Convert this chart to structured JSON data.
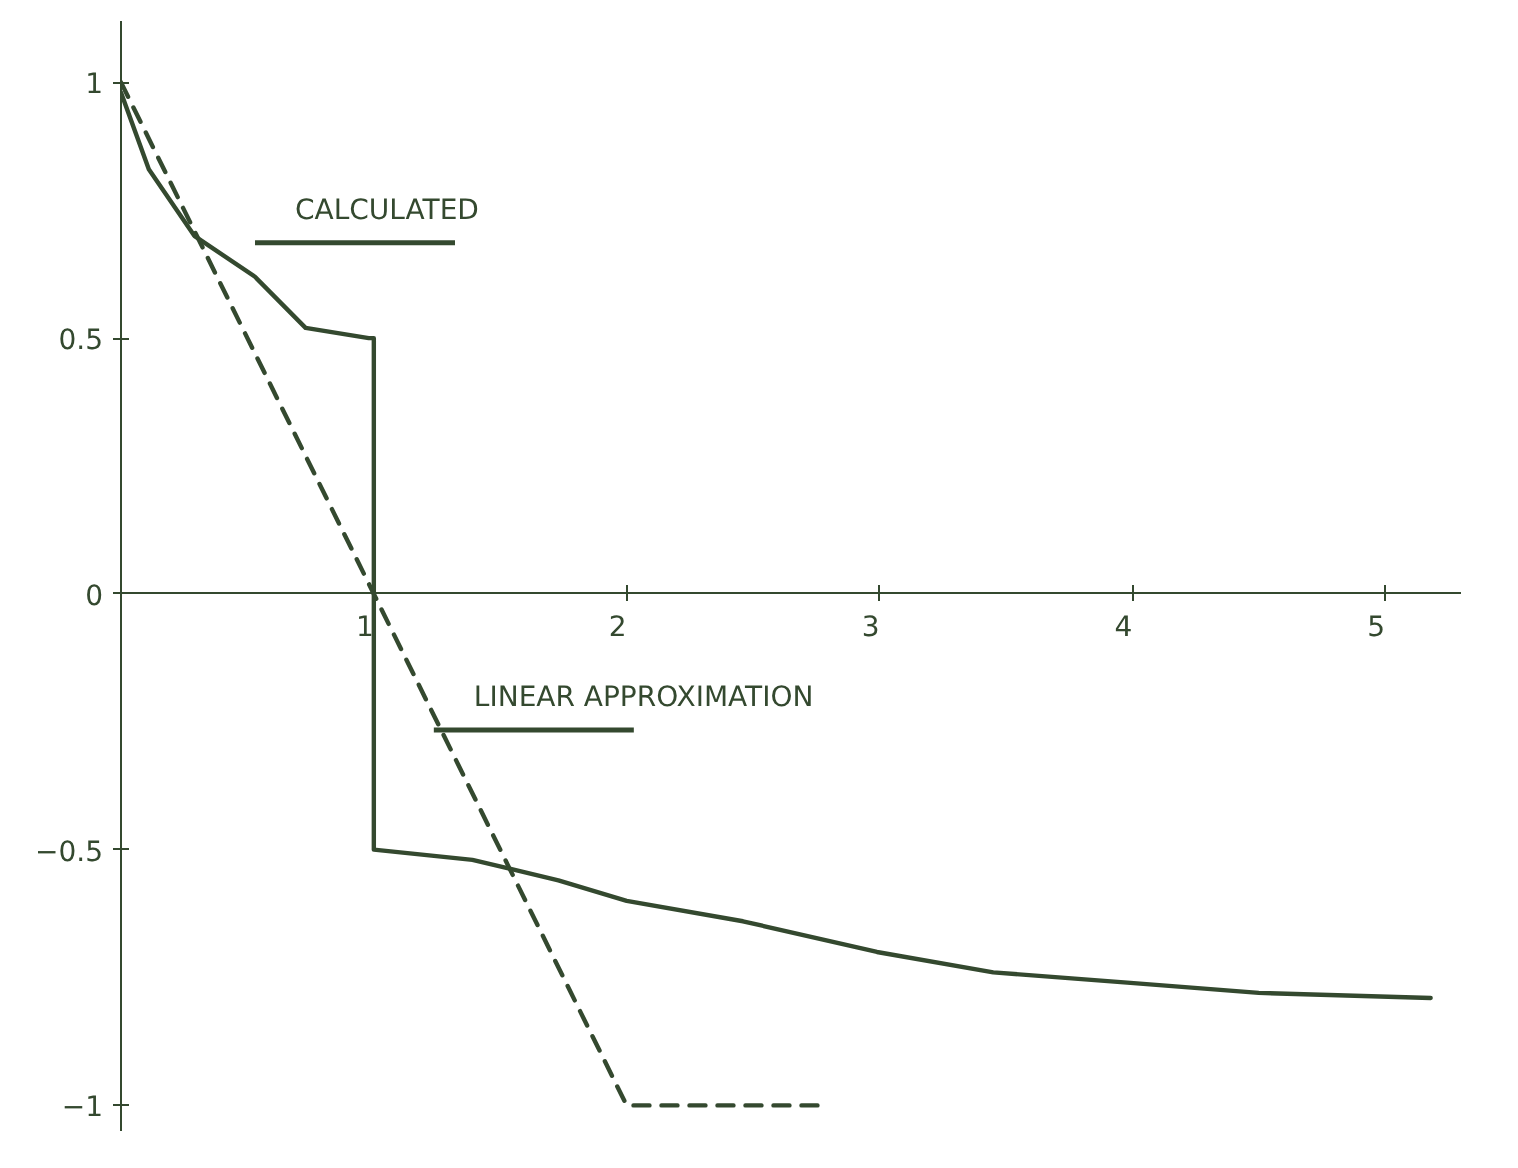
{
  "chart_data": {
    "type": "line",
    "xlim": [
      0,
      5.3
    ],
    "ylim": [
      -1.05,
      1.12
    ],
    "xticks": [
      1,
      2,
      3,
      4,
      5
    ],
    "yticks": [
      -1,
      -0.5,
      0,
      0.5,
      1
    ],
    "grid": false,
    "series": [
      {
        "name": "CALCULATED",
        "color": "#34492f",
        "line_style": "solid",
        "x": [
          0,
          0.11,
          0.29,
          0.53,
          0.73,
          0.98,
          1,
          1,
          1.39,
          1.73,
          2,
          2.46,
          2.99,
          3.45,
          3.98,
          4.5,
          5.18
        ],
        "values": [
          0.98,
          0.83,
          0.7,
          0.62,
          0.52,
          0.5,
          0.5,
          -0.5,
          -0.52,
          -0.56,
          -0.6,
          -0.64,
          -0.7,
          -0.74,
          -0.76,
          -0.78,
          -0.79
        ]
      },
      {
        "name": "LINEAR APPROXIMATION",
        "color": "#34492f",
        "line_style": "dashed",
        "x": [
          0,
          1,
          2,
          2.76
        ],
        "values": [
          1,
          0,
          -1,
          -1
        ]
      }
    ]
  }
}
